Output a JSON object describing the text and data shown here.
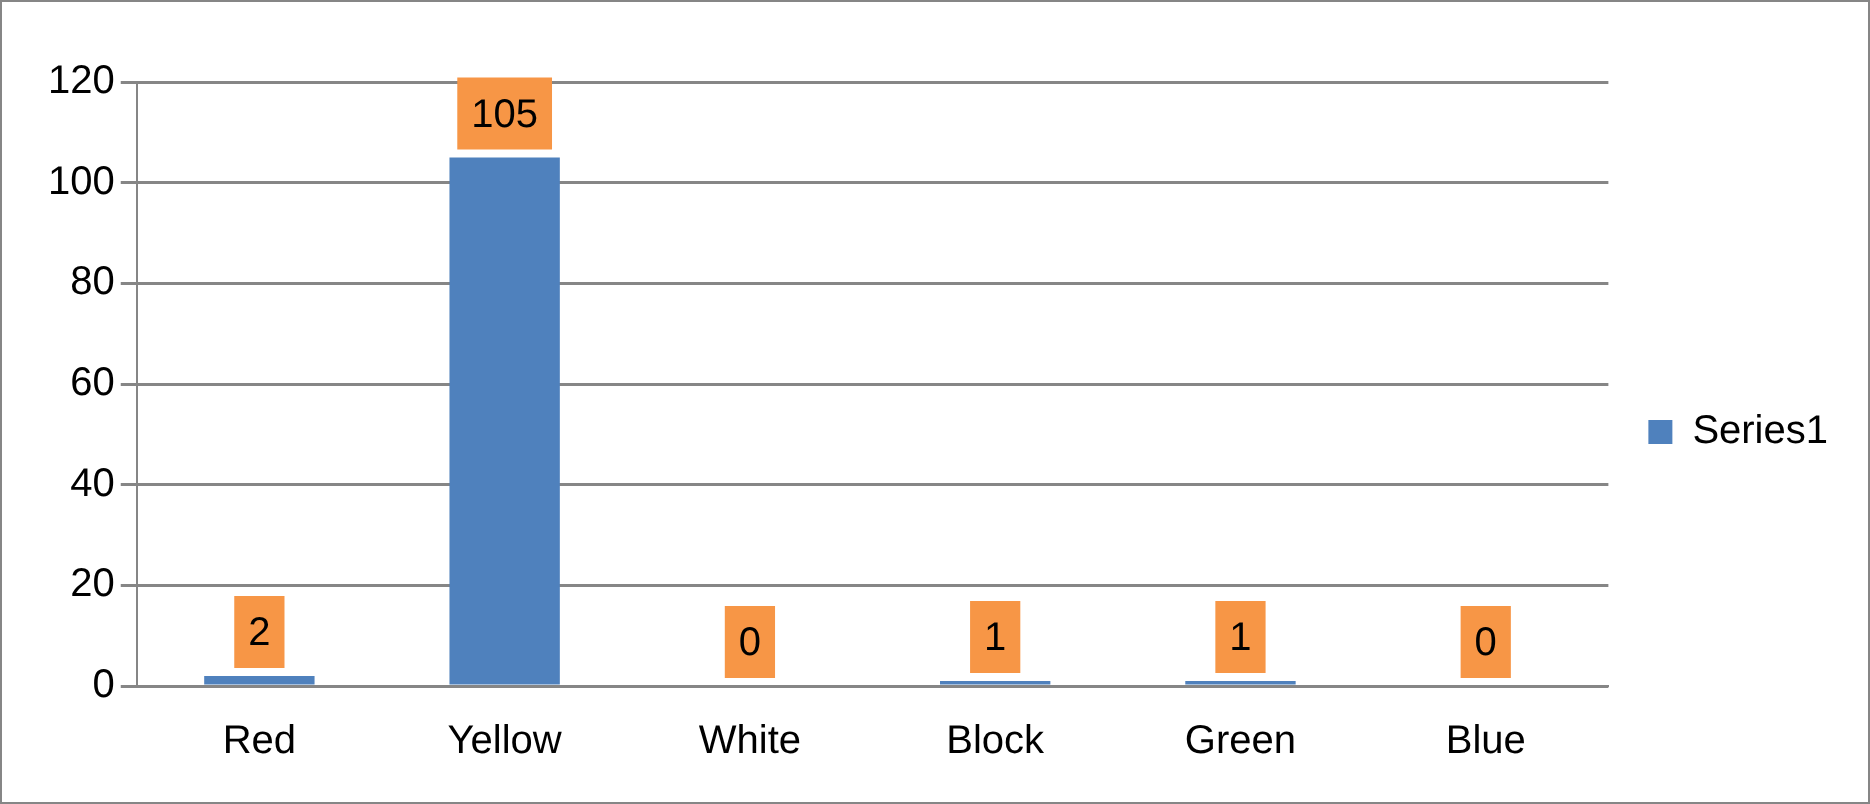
{
  "chart_data": {
    "type": "bar",
    "categories": [
      "Red",
      "Yellow",
      "White",
      "Block",
      "Green",
      "Blue"
    ],
    "series": [
      {
        "name": "Series1",
        "color": "#4f81bd",
        "values": [
          2,
          105,
          0,
          1,
          1,
          0
        ]
      }
    ],
    "ylim": [
      0,
      120
    ],
    "yticks": [
      0,
      20,
      40,
      60,
      80,
      100,
      120
    ],
    "grid": "y",
    "legend": "right",
    "data_labels": true
  }
}
